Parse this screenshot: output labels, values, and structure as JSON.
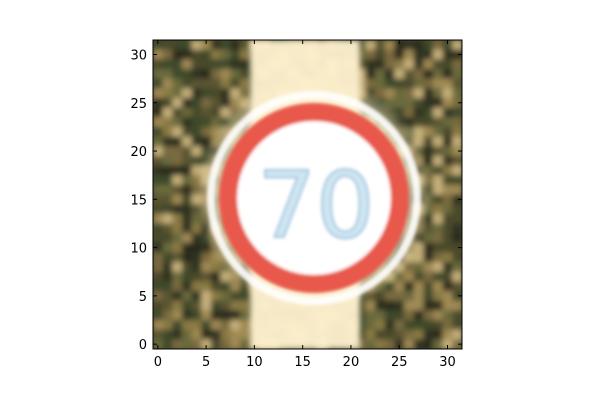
{
  "figure": {
    "image_subject": "speed-limit-sign",
    "sign_text": "70",
    "image_grid_size": [
      32,
      32
    ],
    "x_axis": {
      "range": [
        -0.5,
        31.5
      ],
      "ticks": [
        0,
        5,
        10,
        15,
        20,
        25,
        30
      ]
    },
    "y_axis": {
      "range": [
        31.5,
        -0.5
      ],
      "ticks": [
        0,
        5,
        10,
        15,
        20,
        25,
        30
      ]
    },
    "colors": {
      "ring": "#e8584c",
      "sign_face": "#ffffff",
      "numeral": "#cfe6f2",
      "foliage_dark": "#3a3a22",
      "foliage_mid": "#6b6a3c",
      "sky_glow": "#fff3cf",
      "axes": "#000000"
    }
  }
}
